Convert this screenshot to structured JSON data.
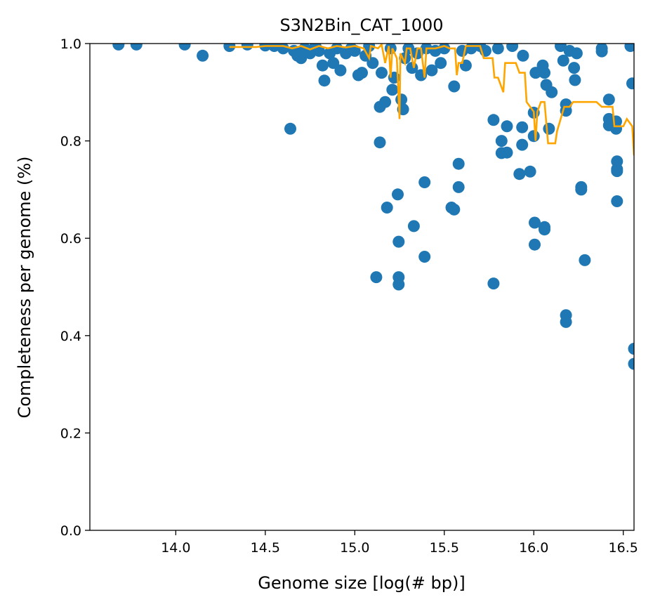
{
  "chart_data": {
    "type": "scatter",
    "title": "S3N2Bin_CAT_1000",
    "xlabel": "Genome size [log(# bp)]",
    "ylabel": "Completeness per genome (%)",
    "xlim": [
      13.52,
      16.56
    ],
    "ylim": [
      0.0,
      1.0
    ],
    "xticks": [
      14.0,
      14.5,
      15.0,
      15.5,
      16.0,
      16.5
    ],
    "xtick_labels": [
      "14.0",
      "14.5",
      "15.0",
      "15.5",
      "16.0",
      "16.5"
    ],
    "yticks": [
      0.0,
      0.2,
      0.4,
      0.6,
      0.8,
      1.0
    ],
    "ytick_labels": [
      "0.0",
      "0.2",
      "0.4",
      "0.6",
      "0.8",
      "1.0"
    ],
    "grid": false,
    "colors": {
      "points": "#1f77b4",
      "line": "#ffa500"
    },
    "series": [
      {
        "kind": "scatter",
        "points": [
          [
            13.68,
            0.998
          ],
          [
            13.78,
            0.998
          ],
          [
            14.05,
            0.998
          ],
          [
            14.15,
            0.975
          ],
          [
            14.3,
            0.995
          ],
          [
            14.4,
            0.998
          ],
          [
            14.5,
            0.996
          ],
          [
            14.55,
            0.995
          ],
          [
            14.6,
            0.99
          ],
          [
            14.64,
            0.825
          ],
          [
            14.66,
            0.985
          ],
          [
            14.68,
            0.975
          ],
          [
            14.7,
            0.97
          ],
          [
            14.72,
            0.99
          ],
          [
            14.75,
            0.98
          ],
          [
            14.78,
            0.995
          ],
          [
            14.8,
            0.985
          ],
          [
            14.82,
            0.955
          ],
          [
            14.83,
            0.924
          ],
          [
            14.86,
            0.98
          ],
          [
            14.88,
            0.96
          ],
          [
            14.9,
            0.99
          ],
          [
            14.92,
            0.945
          ],
          [
            14.95,
            0.98
          ],
          [
            14.98,
            0.99
          ],
          [
            15.0,
            0.985
          ],
          [
            15.02,
            0.935
          ],
          [
            15.04,
            0.94
          ],
          [
            15.06,
            0.975
          ],
          [
            15.08,
            0.995
          ],
          [
            15.1,
            0.96
          ],
          [
            15.12,
            0.52
          ],
          [
            15.14,
            0.87
          ],
          [
            15.14,
            0.797
          ],
          [
            15.15,
            0.94
          ],
          [
            15.17,
            0.88
          ],
          [
            15.18,
            0.663
          ],
          [
            15.2,
            0.99
          ],
          [
            15.21,
            0.905
          ],
          [
            15.22,
            0.93
          ],
          [
            15.24,
            0.69
          ],
          [
            15.245,
            0.593
          ],
          [
            15.245,
            0.52
          ],
          [
            15.245,
            0.505
          ],
          [
            15.26,
            0.885
          ],
          [
            15.27,
            0.865
          ],
          [
            15.28,
            0.97
          ],
          [
            15.3,
            0.99
          ],
          [
            15.32,
            0.95
          ],
          [
            15.33,
            0.625
          ],
          [
            15.35,
            0.98
          ],
          [
            15.37,
            0.935
          ],
          [
            15.39,
            0.715
          ],
          [
            15.39,
            0.562
          ],
          [
            15.4,
            0.99
          ],
          [
            15.43,
            0.945
          ],
          [
            15.45,
            0.985
          ],
          [
            15.48,
            0.96
          ],
          [
            15.5,
            0.99
          ],
          [
            15.54,
            0.663
          ],
          [
            15.555,
            0.659
          ],
          [
            15.555,
            0.912
          ],
          [
            15.58,
            0.753
          ],
          [
            15.58,
            0.705
          ],
          [
            15.6,
            0.985
          ],
          [
            15.62,
            0.955
          ],
          [
            15.65,
            0.99
          ],
          [
            15.7,
            0.995
          ],
          [
            15.73,
            0.985
          ],
          [
            15.775,
            0.843
          ],
          [
            15.775,
            0.507
          ],
          [
            15.8,
            0.99
          ],
          [
            15.82,
            0.8
          ],
          [
            15.82,
            0.775
          ],
          [
            15.85,
            0.83
          ],
          [
            15.85,
            0.776
          ],
          [
            15.88,
            0.995
          ],
          [
            15.92,
            0.732
          ],
          [
            15.935,
            0.828
          ],
          [
            15.935,
            0.792
          ],
          [
            15.94,
            0.975
          ],
          [
            15.98,
            0.737
          ],
          [
            16.0,
            0.858
          ],
          [
            16.0,
            0.81
          ],
          [
            16.005,
            0.632
          ],
          [
            16.005,
            0.587
          ],
          [
            16.01,
            0.94
          ],
          [
            16.05,
            0.955
          ],
          [
            16.06,
            0.94
          ],
          [
            16.06,
            0.623
          ],
          [
            16.06,
            0.618
          ],
          [
            16.07,
            0.915
          ],
          [
            16.085,
            0.825
          ],
          [
            16.1,
            0.9
          ],
          [
            16.15,
            0.995
          ],
          [
            16.165,
            0.965
          ],
          [
            16.18,
            0.875
          ],
          [
            16.18,
            0.862
          ],
          [
            16.18,
            0.442
          ],
          [
            16.18,
            0.428
          ],
          [
            16.2,
            0.985
          ],
          [
            16.225,
            0.95
          ],
          [
            16.23,
            0.925
          ],
          [
            16.24,
            0.98
          ],
          [
            16.265,
            0.705
          ],
          [
            16.265,
            0.7
          ],
          [
            16.285,
            0.555
          ],
          [
            16.38,
            0.99
          ],
          [
            16.38,
            0.984
          ],
          [
            16.42,
            0.885
          ],
          [
            16.42,
            0.845
          ],
          [
            16.42,
            0.832
          ],
          [
            16.46,
            0.84
          ],
          [
            16.46,
            0.825
          ],
          [
            16.465,
            0.758
          ],
          [
            16.465,
            0.742
          ],
          [
            16.465,
            0.738
          ],
          [
            16.465,
            0.676
          ],
          [
            16.54,
            0.995
          ],
          [
            16.55,
            0.918
          ],
          [
            16.56,
            0.373
          ],
          [
            16.56,
            0.342
          ]
        ]
      },
      {
        "kind": "line",
        "points": [
          [
            14.3,
            0.993
          ],
          [
            14.45,
            0.993
          ],
          [
            14.5,
            0.995
          ],
          [
            14.6,
            0.995
          ],
          [
            14.65,
            0.99
          ],
          [
            14.7,
            0.995
          ],
          [
            14.75,
            0.988
          ],
          [
            14.8,
            0.995
          ],
          [
            14.85,
            0.99
          ],
          [
            14.9,
            0.995
          ],
          [
            14.95,
            0.992
          ],
          [
            15.0,
            0.995
          ],
          [
            15.05,
            0.99
          ],
          [
            15.08,
            0.97
          ],
          [
            15.09,
            0.995
          ],
          [
            15.13,
            0.99
          ],
          [
            15.15,
            0.998
          ],
          [
            15.17,
            0.96
          ],
          [
            15.19,
            0.995
          ],
          [
            15.2,
            0.93
          ],
          [
            15.21,
            0.99
          ],
          [
            15.235,
            0.97
          ],
          [
            15.25,
            0.845
          ],
          [
            15.255,
            0.98
          ],
          [
            15.28,
            0.96
          ],
          [
            15.29,
            0.99
          ],
          [
            15.31,
            0.99
          ],
          [
            15.33,
            0.95
          ],
          [
            15.35,
            0.99
          ],
          [
            15.37,
            0.99
          ],
          [
            15.39,
            0.93
          ],
          [
            15.4,
            0.99
          ],
          [
            15.45,
            0.99
          ],
          [
            15.5,
            0.995
          ],
          [
            15.53,
            0.99
          ],
          [
            15.56,
            0.99
          ],
          [
            15.57,
            0.935
          ],
          [
            15.58,
            0.96
          ],
          [
            15.6,
            0.96
          ],
          [
            15.62,
            0.995
          ],
          [
            15.7,
            0.995
          ],
          [
            15.72,
            0.97
          ],
          [
            15.77,
            0.97
          ],
          [
            15.78,
            0.93
          ],
          [
            15.8,
            0.93
          ],
          [
            15.83,
            0.9
          ],
          [
            15.84,
            0.96
          ],
          [
            15.9,
            0.96
          ],
          [
            15.92,
            0.94
          ],
          [
            15.95,
            0.94
          ],
          [
            15.96,
            0.88
          ],
          [
            16.0,
            0.86
          ],
          [
            16.01,
            0.8
          ],
          [
            16.02,
            0.86
          ],
          [
            16.04,
            0.88
          ],
          [
            16.06,
            0.88
          ],
          [
            16.08,
            0.795
          ],
          [
            16.12,
            0.795
          ],
          [
            16.13,
            0.82
          ],
          [
            16.17,
            0.87
          ],
          [
            16.2,
            0.87
          ],
          [
            16.22,
            0.88
          ],
          [
            16.35,
            0.88
          ],
          [
            16.38,
            0.87
          ],
          [
            16.44,
            0.87
          ],
          [
            16.45,
            0.83
          ],
          [
            16.5,
            0.83
          ],
          [
            16.52,
            0.845
          ],
          [
            16.55,
            0.83
          ],
          [
            16.56,
            0.77
          ]
        ]
      }
    ]
  }
}
